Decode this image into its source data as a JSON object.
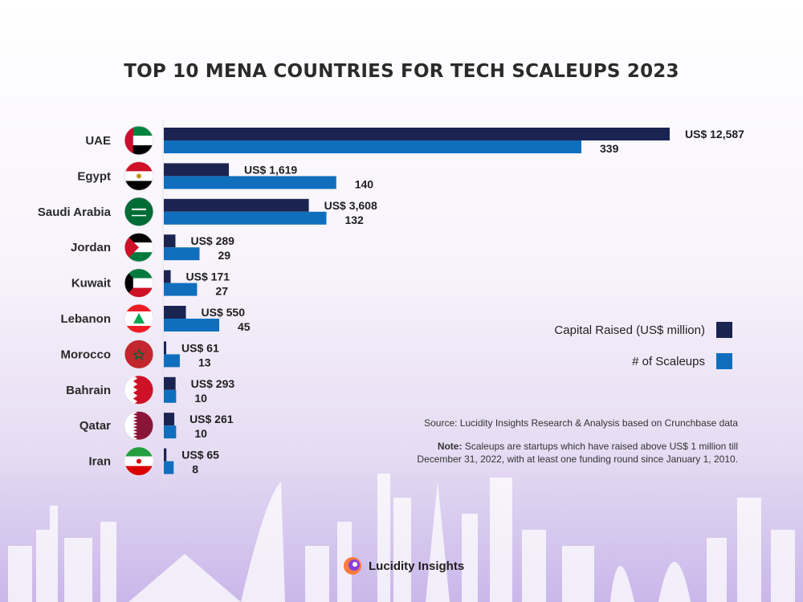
{
  "chart_data": {
    "type": "bar",
    "orientation": "horizontal",
    "title": "TOP 10 MENA COUNTRIES FOR TECH SCALEUPS 2023",
    "categories": [
      "UAE",
      "Egypt",
      "Saudi Arabia",
      "Jordan",
      "Kuwait",
      "Lebanon",
      "Morocco",
      "Bahrain",
      "Qatar",
      "Iran"
    ],
    "series": [
      {
        "name": "Capital Raised (US$ million)",
        "color": "#1b2451",
        "values": [
          12587,
          1619,
          3608,
          289,
          171,
          550,
          61,
          293,
          261,
          65
        ],
        "labels": [
          "US$ 12,587",
          "US$ 1,619",
          "US$ 3,608",
          "US$ 289",
          "US$ 171",
          "US$ 550",
          "US$ 61",
          "US$ 293",
          "US$ 261",
          "US$ 65"
        ]
      },
      {
        "name": "# of Scaleups",
        "color": "#0f6fbd",
        "values": [
          339,
          140,
          132,
          29,
          27,
          45,
          13,
          10,
          10,
          8
        ],
        "labels": [
          "339",
          "140",
          "132",
          "29",
          "27",
          "45",
          "13",
          "10",
          "10",
          "8"
        ]
      }
    ],
    "legend": "right"
  },
  "source": "Source: Lucidity Insights Research & Analysis based on Crunchbase data",
  "note": {
    "label": "Note:",
    "text": "Scaleups are startups which have raised above US$ 1 million till December 31, 2022, with at least one funding round since January 1, 2010."
  },
  "brand": {
    "name": "Lucidity Insights"
  },
  "flags": [
    "uae-flag-icon",
    "egypt-flag-icon",
    "saudi-arabia-flag-icon",
    "jordan-flag-icon",
    "kuwait-flag-icon",
    "lebanon-flag-icon",
    "morocco-flag-icon",
    "bahrain-flag-icon",
    "qatar-flag-icon",
    "iran-flag-icon"
  ]
}
